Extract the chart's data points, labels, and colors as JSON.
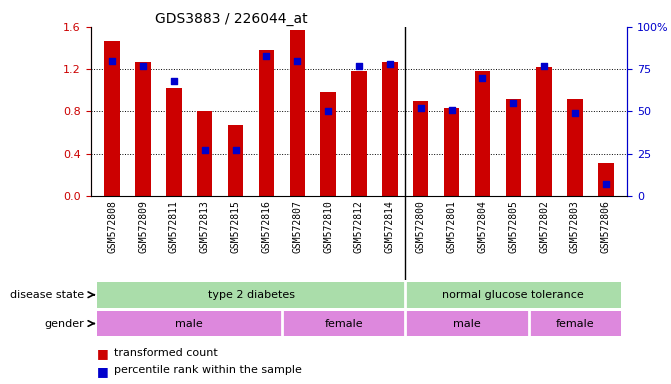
{
  "title": "GDS3883 / 226044_at",
  "samples": [
    "GSM572808",
    "GSM572809",
    "GSM572811",
    "GSM572813",
    "GSM572815",
    "GSM572816",
    "GSM572807",
    "GSM572810",
    "GSM572812",
    "GSM572814",
    "GSM572800",
    "GSM572801",
    "GSM572804",
    "GSM572805",
    "GSM572802",
    "GSM572803",
    "GSM572806"
  ],
  "transformed_count": [
    1.47,
    1.27,
    1.02,
    0.8,
    0.67,
    1.38,
    1.57,
    0.98,
    1.18,
    1.27,
    0.9,
    0.83,
    1.18,
    0.92,
    1.22,
    0.92,
    0.31
  ],
  "percentile_rank": [
    80,
    77,
    68,
    27,
    27,
    83,
    80,
    50,
    77,
    78,
    52,
    51,
    70,
    55,
    77,
    49,
    7
  ],
  "ylim_left": [
    0,
    1.6
  ],
  "ylim_right": [
    0,
    100
  ],
  "yticks_left": [
    0,
    0.4,
    0.8,
    1.2,
    1.6
  ],
  "yticks_right": [
    0,
    25,
    50,
    75,
    100
  ],
  "bar_color": "#cc0000",
  "dot_color": "#0000cc",
  "disease_state_label": "disease state",
  "gender_label": "gender",
  "disease_groups": [
    {
      "label": "type 2 diabetes",
      "count": 10,
      "color": "#aaddaa"
    },
    {
      "label": "normal glucose tolerance",
      "count": 7,
      "color": "#aaddaa"
    }
  ],
  "gender_groups": [
    {
      "label": "male",
      "count": 6,
      "color": "#dd88dd"
    },
    {
      "label": "female",
      "count": 4,
      "color": "#dd88dd"
    },
    {
      "label": "male",
      "count": 4,
      "color": "#dd88dd"
    },
    {
      "label": "female",
      "count": 3,
      "color": "#dd88dd"
    }
  ],
  "legend_items": [
    "transformed count",
    "percentile rank within the sample"
  ],
  "axis_color_left": "#cc0000",
  "axis_color_right": "#0000cc",
  "tick_fontsize": 7,
  "bar_width": 0.5,
  "separator_after": 9,
  "n_t2d": 10,
  "n_ngt": 7,
  "male_t2d_count": 6,
  "female_t2d_count": 4,
  "male_ngt_count": 4,
  "female_ngt_count": 3
}
